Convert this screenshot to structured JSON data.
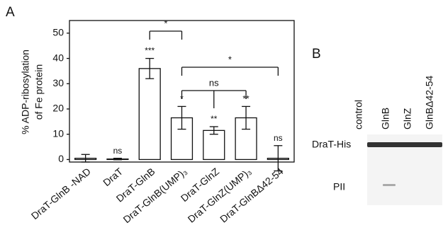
{
  "chart_data": {
    "type": "bar",
    "panel_label": "A",
    "ylabel": [
      "% ADP-ribosylation",
      "of Fe protein"
    ],
    "categories": [
      "DraT-GlnB -NAD",
      "DraT",
      "DraT-GlnB",
      "DraT-GlnB(UMP)₃",
      "DraT-GlnZ",
      "DraT-GlnZ(UMP)₃",
      "DraT-GlnBΔ42-54"
    ],
    "values": [
      0.5,
      0.2,
      36,
      16.5,
      11.5,
      16.5,
      0.5
    ],
    "errors": [
      1.5,
      0.3,
      4,
      4.5,
      1.5,
      4.5,
      5
    ],
    "significance": [
      null,
      "ns",
      "***",
      "*",
      "**",
      "**",
      "ns"
    ],
    "comparisons": [
      {
        "label": "*",
        "groups": [
          "DraT-GlnB",
          "DraT-GlnB(UMP)₃"
        ]
      },
      {
        "label": "*",
        "groups": [
          "DraT-GlnB(UMP)₃",
          "DraT-GlnBΔ42-54"
        ]
      },
      {
        "label": "ns",
        "groups": [
          "DraT-GlnB(UMP)₃",
          "DraT-GlnZ",
          "DraT-GlnZ(UMP)₃"
        ]
      }
    ],
    "color": "#ffffff",
    "ylim": [
      -1,
      55
    ],
    "yticks": [
      0,
      10,
      20,
      30,
      40,
      50
    ]
  },
  "gel": {
    "panel_label": "B",
    "lanes": [
      "control",
      "GlnB",
      "GlnZ",
      "GlnBΔ42-54"
    ],
    "bands": [
      "DraT-His",
      "PII"
    ]
  }
}
